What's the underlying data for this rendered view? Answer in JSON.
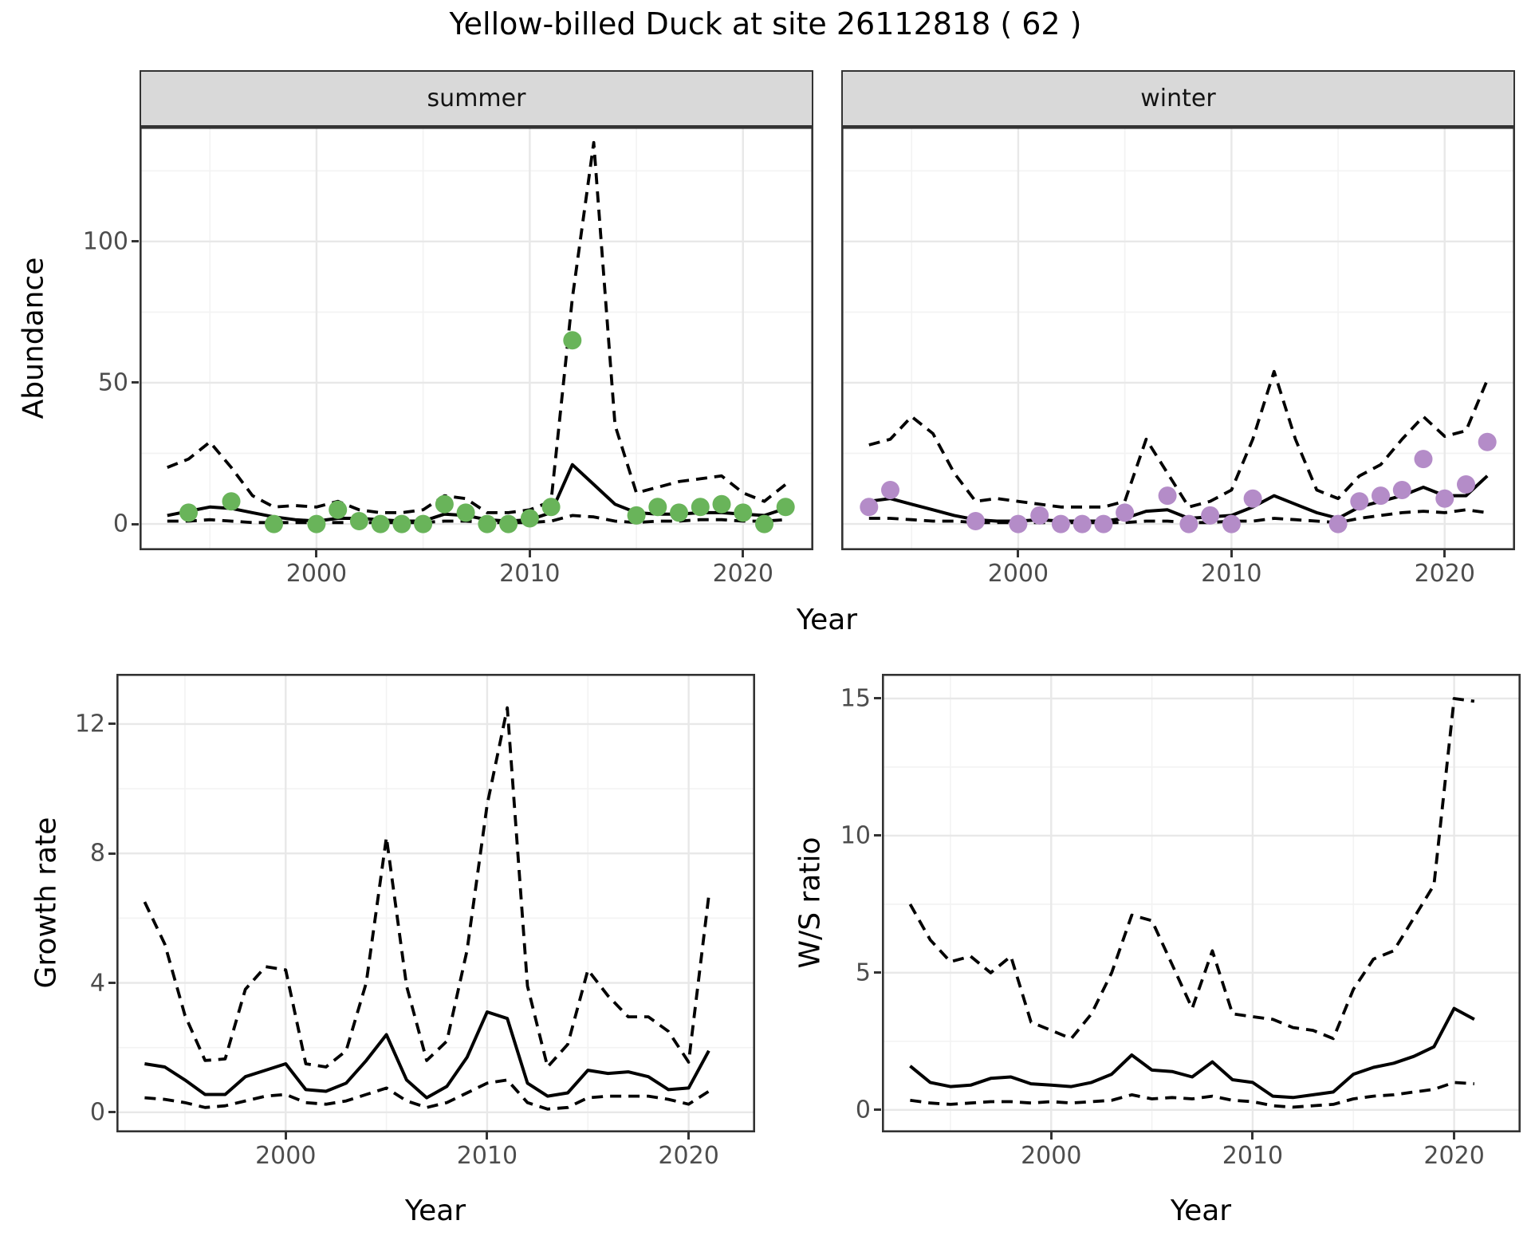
{
  "title": "Yellow-billed Duck at site 26112818 ( 62 )",
  "facets": {
    "summer": "summer",
    "winter": "winter"
  },
  "labels": {
    "abundance": "Abundance",
    "year": "Year",
    "growth_rate": "Growth rate",
    "ws_ratio": "W/S ratio"
  },
  "colors": {
    "summer_point": "#69b45a",
    "winter_point": "#b48cc8",
    "line": "#000000",
    "panel_border": "#333333",
    "grid_major": "#e8e8e8",
    "grid_minor": "#f3f3f3",
    "strip_bg": "#d9d9d9",
    "tick_text": "#4d4d4d"
  },
  "chart_data": [
    {
      "id": "abundance-summer",
      "type": "line",
      "facet_label": "summer",
      "xlabel": "Year",
      "ylabel": "Abundance",
      "xlim": [
        1991.7,
        2023.3
      ],
      "ylim": [
        -9.3,
        140.6
      ],
      "show_y_labels": true,
      "xticks": {
        "major": [
          2000,
          2010,
          2020
        ],
        "minor": [
          1995,
          2005,
          2015
        ],
        "labels": [
          "2000",
          "2010",
          "2020"
        ]
      },
      "yticks": {
        "major": [
          0,
          50,
          100
        ],
        "minor": [
          25,
          75,
          125
        ],
        "labels": [
          "0",
          "50",
          "100"
        ]
      },
      "years": [
        1993,
        1994,
        1995,
        1996,
        1997,
        1998,
        1999,
        2000,
        2001,
        2002,
        2003,
        2004,
        2005,
        2006,
        2007,
        2008,
        2009,
        2010,
        2011,
        2012,
        2013,
        2014,
        2015,
        2016,
        2017,
        2018,
        2019,
        2020,
        2021,
        2022
      ],
      "lines": [
        {
          "name": "fit",
          "style": "solid",
          "values": [
            3,
            4.5,
            6,
            5.5,
            4,
            2.5,
            1.5,
            1,
            2,
            2,
            1.5,
            1,
            1,
            3.5,
            3,
            1.5,
            1,
            1.5,
            4,
            21,
            14,
            7,
            4,
            3.5,
            3.5,
            4,
            4,
            3.5,
            3,
            5.5
          ]
        },
        {
          "name": "upper_ci",
          "style": "dashed",
          "values": [
            20,
            23,
            29,
            20,
            10,
            6,
            6.5,
            6,
            8,
            5,
            4,
            4,
            5,
            10,
            9,
            4,
            4,
            5,
            8,
            80,
            135,
            35,
            11,
            13,
            15,
            16,
            17,
            11,
            8,
            14
          ]
        },
        {
          "name": "lower_ci",
          "style": "dashed",
          "values": [
            1,
            1,
            1.5,
            1,
            0.5,
            0.5,
            0.5,
            0.5,
            0.5,
            0.5,
            0.5,
            0.5,
            0.5,
            1,
            1,
            0.5,
            0.5,
            0.5,
            1,
            3,
            2.5,
            1,
            0.5,
            1,
            1,
            1.5,
            1.5,
            1,
            1,
            1.5
          ]
        }
      ],
      "point_color": "summer_point",
      "points": [
        [
          1994,
          4
        ],
        [
          1996,
          8
        ],
        [
          1998,
          0
        ],
        [
          2000,
          0
        ],
        [
          2001,
          5
        ],
        [
          2002,
          1
        ],
        [
          2003,
          0
        ],
        [
          2004,
          0
        ],
        [
          2005,
          0
        ],
        [
          2006,
          7
        ],
        [
          2007,
          4
        ],
        [
          2008,
          0
        ],
        [
          2009,
          0
        ],
        [
          2010,
          2
        ],
        [
          2011,
          6
        ],
        [
          2012,
          65
        ],
        [
          2015,
          3
        ],
        [
          2016,
          6
        ],
        [
          2017,
          4
        ],
        [
          2018,
          6
        ],
        [
          2019,
          7
        ],
        [
          2020,
          4
        ],
        [
          2021,
          0
        ],
        [
          2022,
          6
        ]
      ]
    },
    {
      "id": "abundance-winter",
      "type": "line",
      "facet_label": "winter",
      "xlabel": "Year",
      "ylabel": "Abundance",
      "xlim": [
        1991.7,
        2023.3
      ],
      "ylim": [
        -9.3,
        140.6
      ],
      "show_y_labels": false,
      "xticks": {
        "major": [
          2000,
          2010,
          2020
        ],
        "minor": [
          1995,
          2005,
          2015
        ],
        "labels": [
          "2000",
          "2010",
          "2020"
        ]
      },
      "yticks": {
        "major": [
          0,
          50,
          100
        ],
        "minor": [
          25,
          75,
          125
        ],
        "labels": [
          "0",
          "50",
          "100"
        ]
      },
      "years": [
        1993,
        1994,
        1995,
        1996,
        1997,
        1998,
        1999,
        2000,
        2001,
        2002,
        2003,
        2004,
        2005,
        2006,
        2007,
        2008,
        2009,
        2010,
        2011,
        2012,
        2013,
        2014,
        2015,
        2016,
        2017,
        2018,
        2019,
        2020,
        2021,
        2022
      ],
      "lines": [
        {
          "name": "fit",
          "style": "solid",
          "values": [
            8,
            9,
            7,
            5,
            3,
            1.5,
            1,
            1,
            1.5,
            1,
            1,
            1,
            2,
            4.5,
            5,
            2,
            2.5,
            3,
            6,
            10,
            7,
            4,
            2,
            6,
            8,
            10,
            13,
            10,
            10,
            17
          ]
        },
        {
          "name": "upper_ci",
          "style": "dashed",
          "values": [
            28,
            30,
            38,
            32,
            18,
            8,
            9,
            8,
            7,
            6,
            6,
            6,
            8,
            30,
            18,
            6,
            8,
            12,
            30,
            54,
            30,
            12,
            9,
            17,
            21,
            30,
            38,
            31,
            33,
            51
          ]
        },
        {
          "name": "lower_ci",
          "style": "dashed",
          "values": [
            2,
            2,
            1.5,
            1,
            1,
            0.5,
            0.5,
            0.5,
            0.5,
            0.5,
            0.5,
            0.5,
            0.5,
            1,
            1,
            0.5,
            0.5,
            1,
            1,
            2,
            1.5,
            1,
            0.5,
            2,
            3,
            4,
            4.5,
            4,
            5,
            4
          ]
        }
      ],
      "point_color": "winter_point",
      "points": [
        [
          1993,
          6
        ],
        [
          1994,
          12
        ],
        [
          1998,
          1
        ],
        [
          2000,
          0
        ],
        [
          2001,
          3
        ],
        [
          2002,
          0
        ],
        [
          2003,
          0
        ],
        [
          2004,
          0
        ],
        [
          2005,
          4
        ],
        [
          2007,
          10
        ],
        [
          2008,
          0
        ],
        [
          2009,
          3
        ],
        [
          2010,
          0
        ],
        [
          2011,
          9
        ],
        [
          2015,
          0
        ],
        [
          2016,
          8
        ],
        [
          2017,
          10
        ],
        [
          2018,
          12
        ],
        [
          2019,
          23
        ],
        [
          2020,
          9
        ],
        [
          2021,
          14
        ],
        [
          2022,
          29
        ]
      ]
    },
    {
      "id": "growth-rate",
      "type": "line",
      "xlabel": "Year",
      "ylabel": "Growth rate",
      "xlim": [
        1991.6,
        2023.3
      ],
      "ylim": [
        -0.62,
        13.55
      ],
      "show_y_labels": true,
      "xticks": {
        "major": [
          2000,
          2010,
          2020
        ],
        "minor": [
          1995,
          2005,
          2015
        ],
        "labels": [
          "2000",
          "2010",
          "2020"
        ]
      },
      "yticks": {
        "major": [
          0,
          4,
          8,
          12
        ],
        "minor": [
          2,
          6,
          10
        ],
        "labels": [
          "0",
          "4",
          "8",
          "12"
        ]
      },
      "years": [
        1993,
        1994,
        1995,
        1996,
        1997,
        1998,
        1999,
        2000,
        2001,
        2002,
        2003,
        2004,
        2005,
        2006,
        2007,
        2008,
        2009,
        2010,
        2011,
        2012,
        2013,
        2014,
        2015,
        2016,
        2017,
        2018,
        2019,
        2020,
        2021
      ],
      "lines": [
        {
          "name": "fit",
          "style": "solid",
          "values": [
            1.5,
            1.4,
            1.0,
            0.55,
            0.55,
            1.1,
            1.3,
            1.5,
            0.7,
            0.65,
            0.9,
            1.6,
            2.4,
            1.0,
            0.45,
            0.8,
            1.7,
            3.1,
            2.9,
            0.9,
            0.5,
            0.6,
            1.3,
            1.2,
            1.25,
            1.1,
            0.7,
            0.75,
            1.9
          ]
        },
        {
          "name": "upper_ci",
          "style": "dashed",
          "values": [
            6.5,
            5.2,
            3.0,
            1.6,
            1.65,
            3.8,
            4.5,
            4.4,
            1.5,
            1.4,
            1.9,
            4.0,
            8.5,
            3.9,
            1.6,
            2.2,
            5.0,
            9.5,
            12.5,
            3.9,
            1.4,
            2.1,
            4.4,
            3.6,
            2.95,
            2.95,
            2.5,
            1.55,
            6.7
          ]
        },
        {
          "name": "lower_ci",
          "style": "dashed",
          "values": [
            0.45,
            0.4,
            0.3,
            0.15,
            0.2,
            0.35,
            0.5,
            0.55,
            0.3,
            0.25,
            0.35,
            0.55,
            0.75,
            0.35,
            0.15,
            0.3,
            0.6,
            0.9,
            1.0,
            0.3,
            0.1,
            0.15,
            0.45,
            0.5,
            0.5,
            0.5,
            0.4,
            0.25,
            0.65
          ]
        }
      ],
      "points": []
    },
    {
      "id": "ws-ratio",
      "type": "line",
      "xlabel": "Year",
      "ylabel": "W/S ratio",
      "xlim": [
        1991.6,
        2023.3
      ],
      "ylim": [
        -0.82,
        15.9
      ],
      "show_y_labels": true,
      "xticks": {
        "major": [
          2000,
          2010,
          2020
        ],
        "minor": [
          1995,
          2005,
          2015
        ],
        "labels": [
          "2000",
          "2010",
          "2020"
        ]
      },
      "yticks": {
        "major": [
          0,
          5,
          10,
          15
        ],
        "minor": [
          2.5,
          7.5,
          12.5
        ],
        "labels": [
          "0",
          "5",
          "10",
          "15"
        ]
      },
      "years": [
        1993,
        1994,
        1995,
        1996,
        1997,
        1998,
        1999,
        2000,
        2001,
        2002,
        2003,
        2004,
        2005,
        2006,
        2007,
        2008,
        2009,
        2010,
        2011,
        2012,
        2013,
        2014,
        2015,
        2016,
        2017,
        2018,
        2019,
        2020,
        2021
      ],
      "lines": [
        {
          "name": "fit",
          "style": "solid",
          "values": [
            1.6,
            1.0,
            0.85,
            0.9,
            1.15,
            1.2,
            0.95,
            0.9,
            0.85,
            1.0,
            1.3,
            2.0,
            1.45,
            1.4,
            1.2,
            1.75,
            1.1,
            1.0,
            0.5,
            0.45,
            0.55,
            0.65,
            1.3,
            1.55,
            1.7,
            1.95,
            2.3,
            3.7,
            3.3
          ]
        },
        {
          "name": "upper_ci",
          "style": "dashed",
          "values": [
            7.5,
            6.2,
            5.4,
            5.6,
            5.0,
            5.6,
            3.2,
            2.9,
            2.6,
            3.5,
            5.0,
            7.1,
            6.9,
            5.3,
            3.7,
            5.8,
            3.5,
            3.4,
            3.3,
            3.0,
            2.9,
            2.6,
            4.4,
            5.5,
            5.8,
            7.0,
            8.2,
            15.0,
            14.9
          ]
        },
        {
          "name": "lower_ci",
          "style": "dashed",
          "values": [
            0.35,
            0.25,
            0.2,
            0.25,
            0.3,
            0.3,
            0.25,
            0.3,
            0.25,
            0.3,
            0.35,
            0.55,
            0.4,
            0.45,
            0.4,
            0.5,
            0.35,
            0.3,
            0.15,
            0.1,
            0.15,
            0.2,
            0.4,
            0.5,
            0.55,
            0.65,
            0.75,
            1.0,
            0.95
          ]
        }
      ],
      "points": []
    }
  ]
}
